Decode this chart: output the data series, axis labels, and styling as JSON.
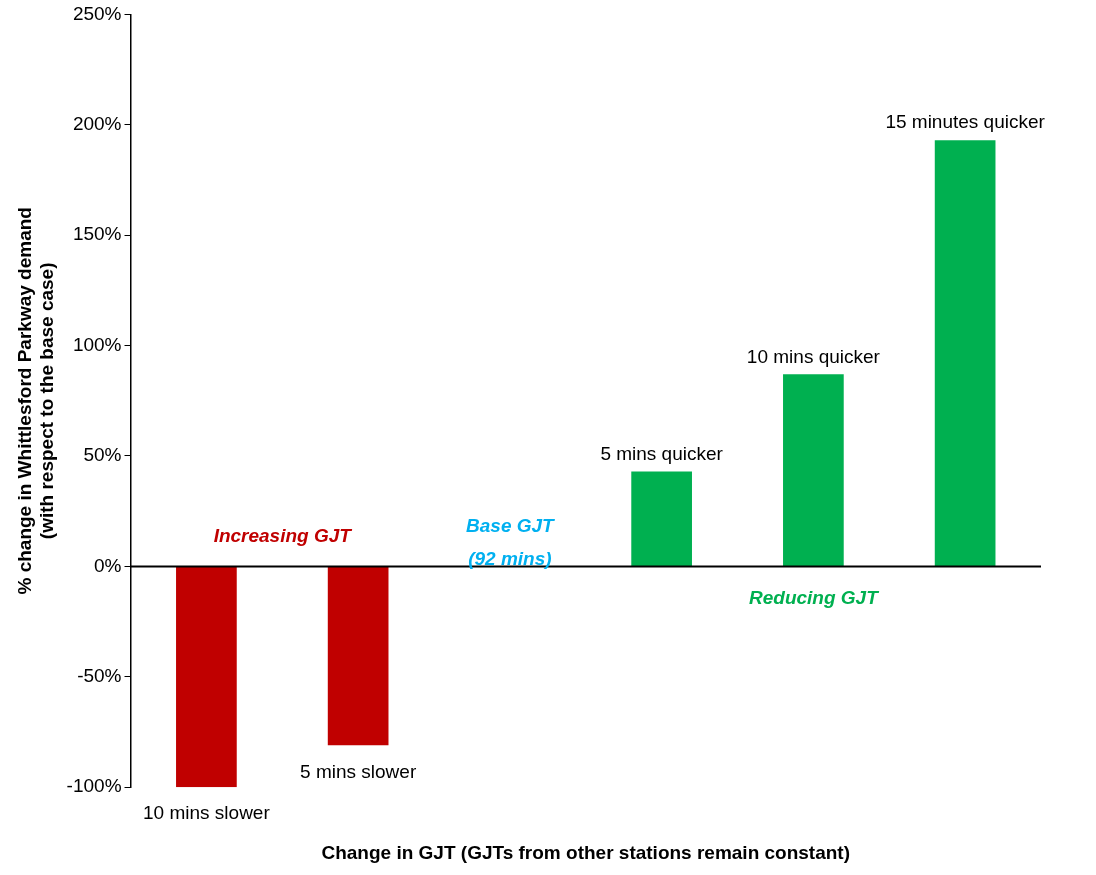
{
  "chart_data": {
    "type": "bar",
    "categories": [
      "10 mins slower",
      "5 mins slower",
      null,
      "5 mins quicker",
      "10 mins quicker",
      "15 minutes quicker"
    ],
    "values": [
      -100,
      -81,
      null,
      43,
      87,
      193
    ],
    "colors": [
      "#c00000",
      "#c00000",
      "#00b0f0",
      "#00b050",
      "#00b050",
      "#00b050"
    ],
    "xlabel": "Change in GJT (GJTs from other stations remain constant)",
    "ylabel": "% change in Whittlesford Parkway demand\n(with respect to the base case)",
    "ylim": [
      -100,
      250
    ],
    "yticks": [
      {
        "value": -100,
        "label": "-100%"
      },
      {
        "value": -50,
        "label": "-50%"
      },
      {
        "value": 0,
        "label": "0%"
      },
      {
        "value": 50,
        "label": "50%"
      },
      {
        "value": 100,
        "label": "100%"
      },
      {
        "value": 150,
        "label": "150%"
      },
      {
        "value": 200,
        "label": "200%"
      },
      {
        "value": 250,
        "label": "250%"
      }
    ],
    "annotations": [
      "Increasing GJT",
      "Base GJT\n(92 mins)",
      "Reducing GJT"
    ],
    "legend": false
  }
}
